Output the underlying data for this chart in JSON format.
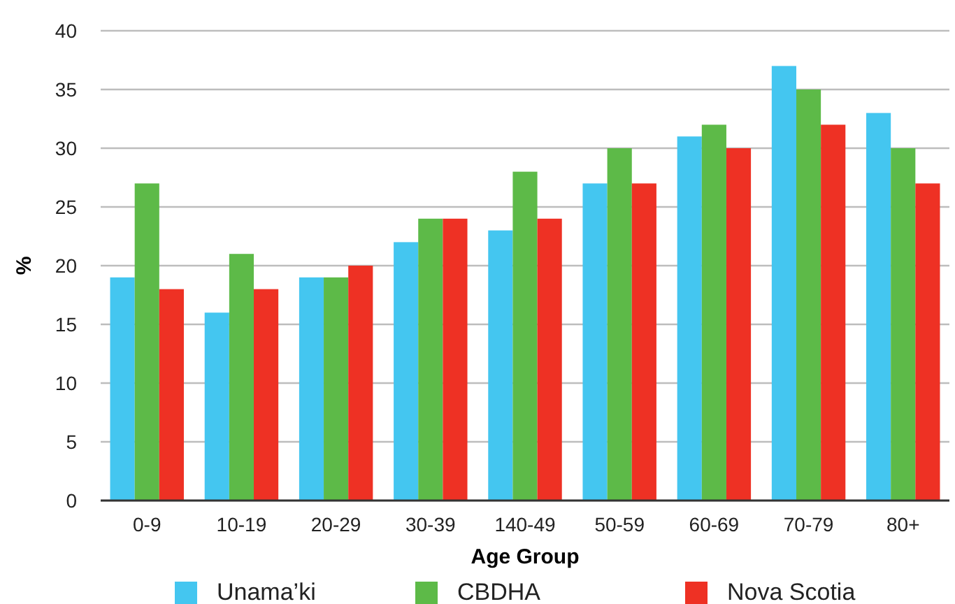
{
  "chart_data": {
    "type": "bar",
    "xlabel": "Age Group",
    "ylabel": "%",
    "categories": [
      "0-9",
      "10-19",
      "20-29",
      "30-39",
      "140-49",
      "50-59",
      "60-69",
      "70-79",
      "80+"
    ],
    "series": [
      {
        "name": "Unama’ki",
        "color": "#44c6f0",
        "values": [
          19,
          16,
          19,
          22,
          23,
          27,
          31,
          37,
          33
        ]
      },
      {
        "name": "CBDHA",
        "color": "#5dba48",
        "values": [
          27,
          21,
          19,
          24,
          28,
          30,
          32,
          35,
          30
        ]
      },
      {
        "name": "Nova Scotia",
        "color": "#ee3124",
        "values": [
          18,
          18,
          20,
          24,
          24,
          27,
          30,
          32,
          27
        ]
      }
    ],
    "ylim": [
      0,
      40
    ],
    "yticks": [
      0,
      5,
      10,
      15,
      20,
      25,
      30,
      35,
      40
    ],
    "grid": "y",
    "legend": "bottom"
  }
}
